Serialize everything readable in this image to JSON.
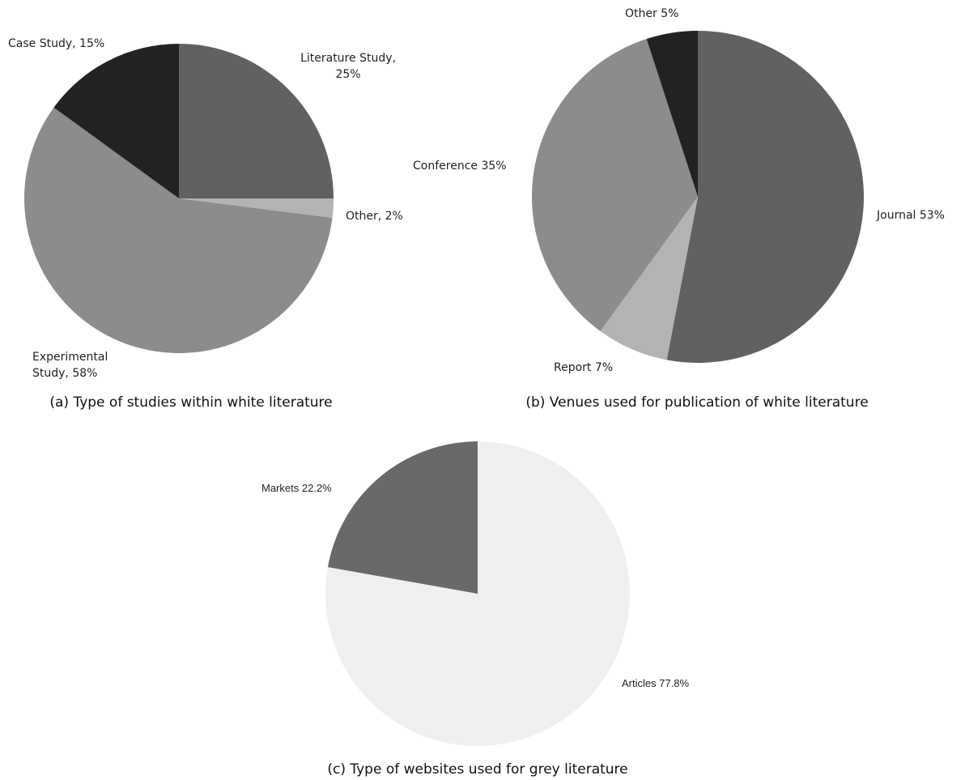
{
  "chart_data": [
    {
      "type": "pie",
      "caption": "(a) Type of studies within white literature",
      "values": [
        25,
        2,
        58,
        15
      ],
      "value_labels": [
        "Literature Study,\n25%",
        "Other, 2%",
        "Experimental\nStudy, 58%",
        "Case Study, 15%"
      ],
      "colors": [
        "#616161",
        "#b3b3b3",
        "#8c8c8c",
        "#222222"
      ]
    },
    {
      "type": "pie",
      "caption": "(b) Venues used for publication of white literature",
      "values": [
        53,
        7,
        35,
        5
      ],
      "value_labels": [
        "Journal 53%",
        "Report 7%",
        "Conference 35%",
        "Other 5%"
      ],
      "colors": [
        "#616161",
        "#b3b3b3",
        "#8c8c8c",
        "#222222"
      ]
    },
    {
      "type": "pie",
      "caption": "(c) Type of websites used for grey literature",
      "values": [
        77.8,
        22.2
      ],
      "value_labels": [
        "Articles 77.8%",
        "Markets 22.2%"
      ],
      "colors": [
        "#efefef",
        "#696969"
      ]
    }
  ]
}
